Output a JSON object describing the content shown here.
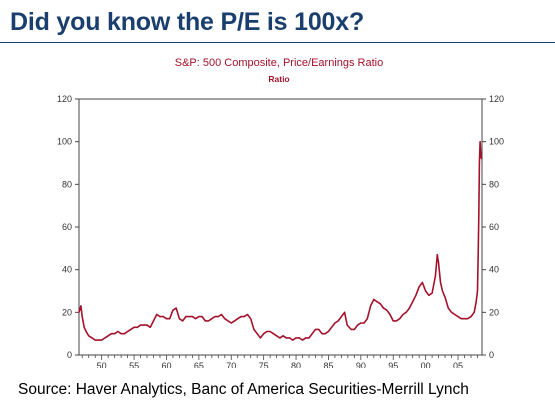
{
  "page": {
    "headline": "Did you know the P/E is 100x?",
    "source": "Source: Haver Analytics, Banc of America Securities-Merrill Lynch"
  },
  "colors": {
    "headline": "#1a3f6e",
    "series": "#a3122a",
    "chart_title": "#a3122a"
  },
  "chart_data": {
    "type": "line",
    "title": "S&P: 500 Composite, Price/Earnings Ratio",
    "subtitle": "Ratio",
    "xlabel": "",
    "ylabel": "",
    "ylim": [
      0,
      120
    ],
    "xlim": [
      1946.5,
      2008.7
    ],
    "yticks": [
      0,
      20,
      40,
      60,
      80,
      100,
      120
    ],
    "yticks_right": [
      0,
      20,
      40,
      60,
      80,
      100,
      120
    ],
    "xticks": [
      {
        "value": 1950,
        "label": "50"
      },
      {
        "value": 1955,
        "label": "55"
      },
      {
        "value": 1960,
        "label": "60"
      },
      {
        "value": 1965,
        "label": "65"
      },
      {
        "value": 1970,
        "label": "70"
      },
      {
        "value": 1975,
        "label": "75"
      },
      {
        "value": 1980,
        "label": "80"
      },
      {
        "value": 1985,
        "label": "85"
      },
      {
        "value": 1990,
        "label": "90"
      },
      {
        "value": 1995,
        "label": "95"
      },
      {
        "value": 2000,
        "label": "00"
      },
      {
        "value": 2005,
        "label": "05"
      }
    ],
    "grid": false,
    "legend": "none",
    "series": [
      {
        "x": [
          1946.5,
          1946.8,
          1947.0,
          1947.3,
          1947.6,
          1948.0,
          1948.5,
          1949.0,
          1949.5,
          1950.0,
          1950.5,
          1951.0,
          1951.5,
          1952.0,
          1952.5,
          1953.0,
          1953.5,
          1954.0,
          1954.5,
          1955.0,
          1955.5,
          1956.0,
          1956.5,
          1957.0,
          1957.5,
          1958.0,
          1958.5,
          1959.0,
          1959.5,
          1960.0,
          1960.5,
          1961.0,
          1961.5,
          1962.0,
          1962.5,
          1963.0,
          1963.5,
          1964.0,
          1964.5,
          1965.0,
          1965.5,
          1966.0,
          1966.5,
          1967.0,
          1967.5,
          1968.0,
          1968.5,
          1969.0,
          1969.5,
          1970.0,
          1970.5,
          1971.0,
          1971.5,
          1972.0,
          1972.5,
          1973.0,
          1973.5,
          1974.0,
          1974.5,
          1975.0,
          1975.5,
          1976.0,
          1976.5,
          1977.0,
          1977.5,
          1978.0,
          1978.5,
          1979.0,
          1979.5,
          1980.0,
          1980.5,
          1981.0,
          1981.5,
          1982.0,
          1982.5,
          1983.0,
          1983.5,
          1984.0,
          1984.5,
          1985.0,
          1985.5,
          1986.0,
          1986.5,
          1987.0,
          1987.5,
          1987.9,
          1988.5,
          1989.0,
          1989.5,
          1990.0,
          1990.5,
          1991.0,
          1991.5,
          1992.0,
          1992.5,
          1993.0,
          1993.5,
          1994.0,
          1994.5,
          1995.0,
          1995.5,
          1996.0,
          1996.5,
          1997.0,
          1997.5,
          1998.0,
          1998.5,
          1999.0,
          1999.5,
          2000.0,
          2000.5,
          2001.0,
          2001.5,
          2001.8,
          2002.0,
          2002.3,
          2002.6,
          2003.0,
          2003.5,
          2004.0,
          2004.5,
          2005.0,
          2005.5,
          2006.0,
          2006.5,
          2007.0,
          2007.5,
          2007.8,
          2008.0,
          2008.1,
          2008.2,
          2008.3,
          2008.4,
          2008.5,
          2008.6
        ],
        "values": [
          20,
          23,
          18,
          13,
          11,
          9,
          8,
          7,
          7,
          7,
          8,
          9,
          10,
          10,
          11,
          10,
          10,
          11,
          12,
          13,
          13,
          14,
          14,
          14,
          13,
          16,
          19,
          18,
          18,
          17,
          17,
          21,
          22,
          17,
          16,
          18,
          18,
          18,
          17,
          18,
          18,
          16,
          16,
          17,
          18,
          18,
          19,
          17,
          16,
          15,
          16,
          17,
          18,
          18,
          19,
          17,
          12,
          10,
          8,
          10,
          11,
          11,
          10,
          9,
          8,
          9,
          8,
          8,
          7,
          8,
          8,
          7,
          8,
          8,
          10,
          12,
          12,
          10,
          10,
          11,
          13,
          15,
          16,
          18,
          20,
          14,
          12,
          12,
          14,
          15,
          15,
          17,
          23,
          26,
          25,
          24,
          22,
          21,
          19,
          16,
          16,
          17,
          19,
          20,
          22,
          25,
          28,
          32,
          34,
          30,
          28,
          29,
          37,
          47,
          43,
          34,
          30,
          27,
          22,
          20,
          19,
          18,
          17,
          17,
          17,
          18,
          20,
          25,
          30,
          45,
          65,
          90,
          100,
          95,
          92
        ]
      }
    ]
  }
}
